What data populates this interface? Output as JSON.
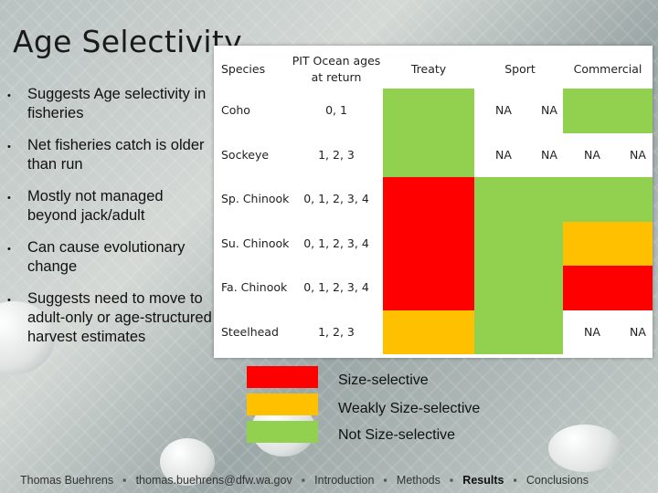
{
  "title": "Age Selectivity",
  "bullets": [
    "Suggests Age selectivity in fisheries",
    "Net fisheries catch is older than run",
    "Mostly not managed beyond jack/adult",
    "Can cause evolutionary change",
    "Suggests need to move to adult-only or age-structured harvest estimates"
  ],
  "table": {
    "headers": {
      "species": "Species",
      "ages": "PIT Ocean ages at return",
      "treaty": "Treaty",
      "sport": "Sport",
      "commercial": "Commercial"
    },
    "rows": [
      {
        "species": "Coho",
        "ages": "0, 1",
        "treaty": "green",
        "sport": [
          "NA",
          "NA"
        ],
        "commercial": "green"
      },
      {
        "species": "Sockeye",
        "ages": "1, 2, 3",
        "treaty": "green",
        "sport": [
          "NA",
          "NA"
        ],
        "commercial": [
          "NA",
          "NA"
        ]
      },
      {
        "species": "Sp. Chinook",
        "ages": "0, 1, 2, 3, 4",
        "treaty": "red",
        "sport": "green",
        "commercial": "green"
      },
      {
        "species": "Su. Chinook",
        "ages": "0, 1, 2, 3, 4",
        "treaty": "red",
        "sport": "green",
        "commercial": "orange"
      },
      {
        "species": "Fa. Chinook",
        "ages": "0, 1, 2, 3, 4",
        "treaty": "red",
        "sport": "green",
        "commercial": "red"
      },
      {
        "species": "Steelhead",
        "ages": "1, 2, 3",
        "treaty": "orange",
        "sport": "green",
        "commercial": [
          "NA",
          "NA"
        ]
      }
    ]
  },
  "legend": [
    {
      "label": "Size-selective",
      "color": "#ff0000"
    },
    {
      "label": "Weakly Size-selective",
      "color": "#ffc000"
    },
    {
      "label": "Not Size-selective",
      "color": "#92d050"
    }
  ],
  "colors": {
    "red": "#ff0000",
    "orange": "#ffc000",
    "green": "#92d050"
  },
  "footer": {
    "author": "Thomas Buehrens",
    "email": "thomas.buehrens@dfw.wa.gov",
    "nav": [
      "Introduction",
      "Methods",
      "Results",
      "Conclusions"
    ],
    "active": "Results",
    "separator": "▪"
  }
}
